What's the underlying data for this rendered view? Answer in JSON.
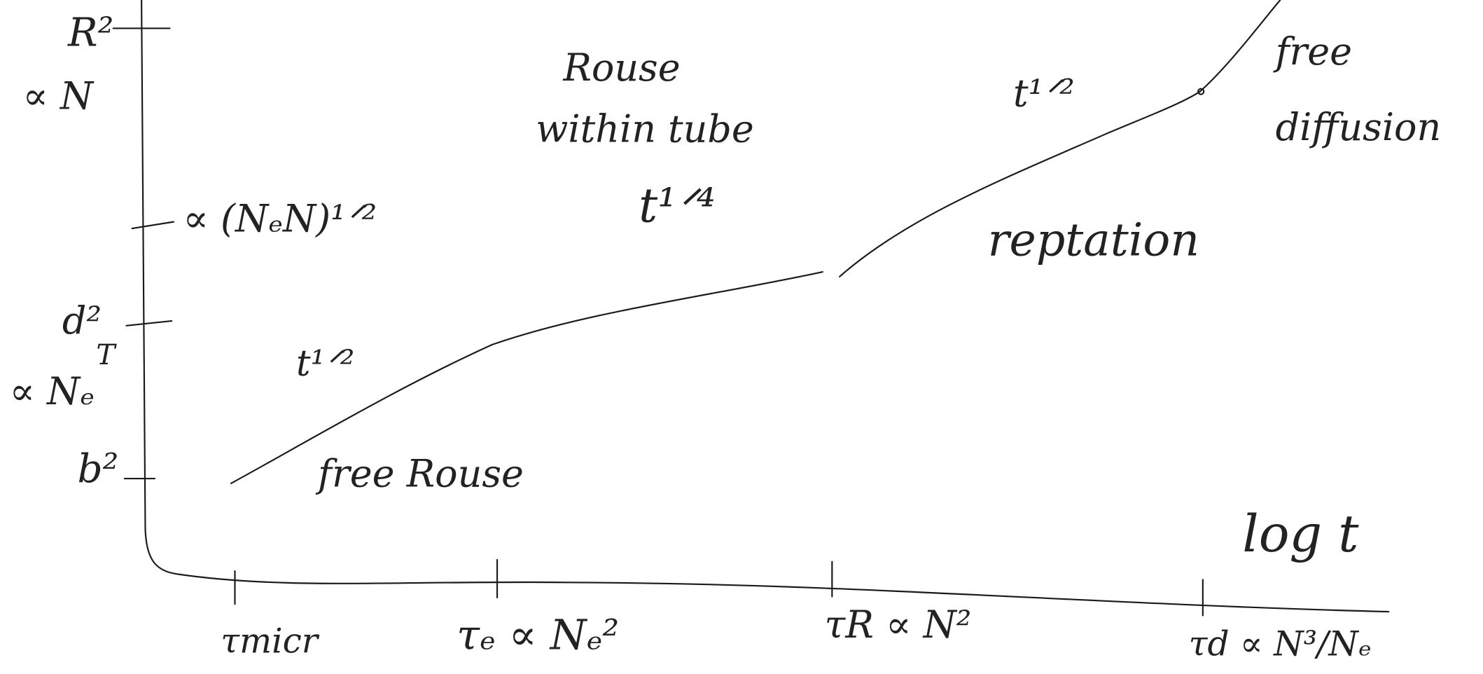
{
  "y_axis": {
    "labels": [
      "R²",
      "∝ N",
      "∝ (NₑN)¹ᐟ²",
      "d²",
      "T",
      "∝ Nₑ",
      "b²"
    ]
  },
  "x_axis": {
    "labels": [
      "τmicr",
      "τₑ ∝ Nₑ²",
      "τR ∝ N²",
      "τd ∝ N³/Nₑ"
    ],
    "title": "log t"
  },
  "regions": {
    "free_rouse": {
      "name": "free Rouse",
      "exponent": "t¹ᐟ²"
    },
    "rouse_within_tube": {
      "name": [
        "Rouse",
        "within tube"
      ],
      "exponent": "t¹ᐟ⁴"
    },
    "reptation": {
      "name": "reptation",
      "exponent": "t¹ᐟ²"
    },
    "free_diffusion": {
      "name": [
        "free",
        "diffusion"
      ]
    }
  }
}
